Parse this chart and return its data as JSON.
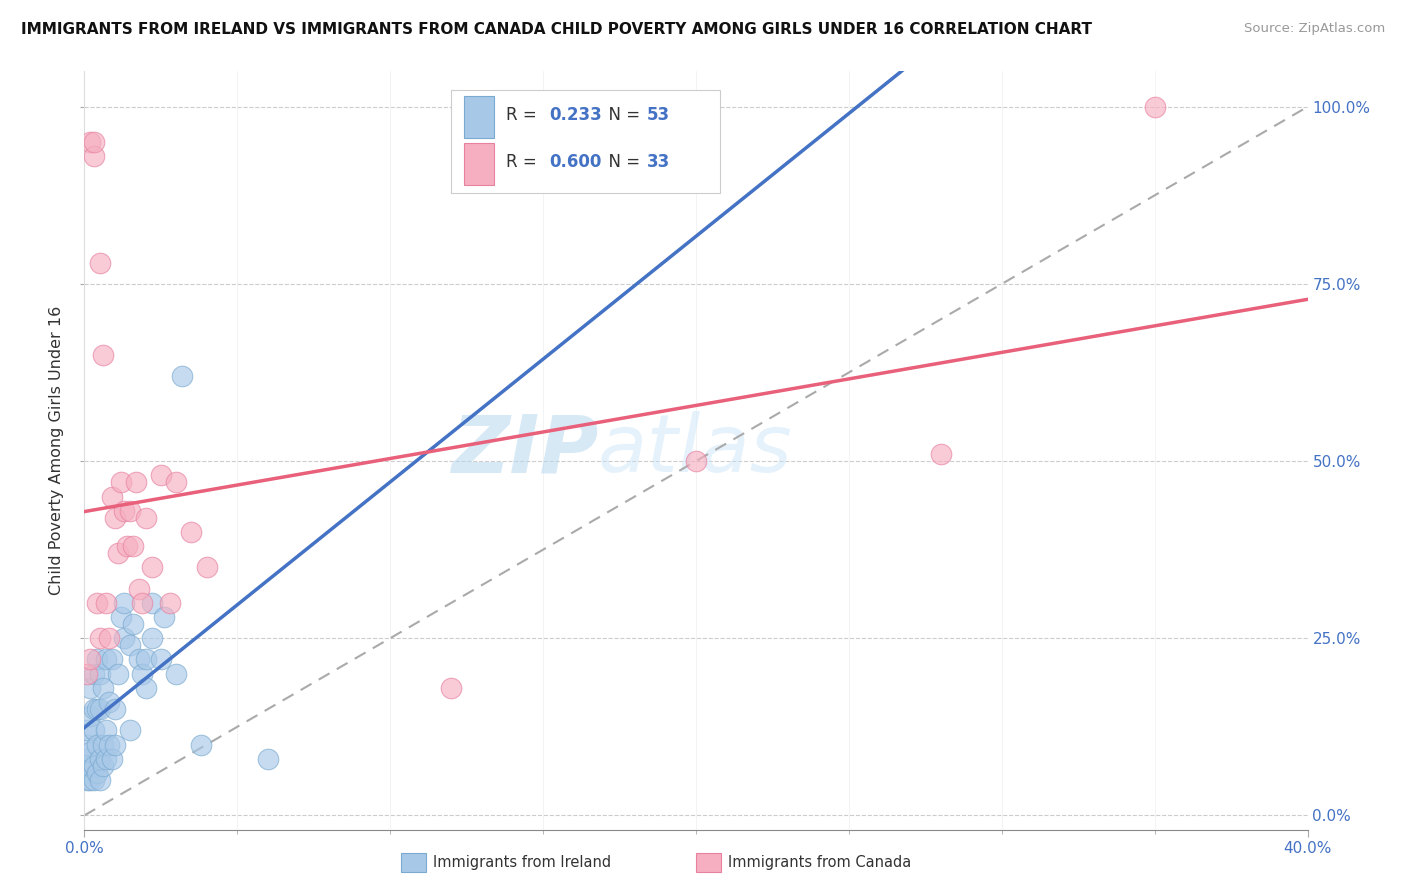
{
  "title": "IMMIGRANTS FROM IRELAND VS IMMIGRANTS FROM CANADA CHILD POVERTY AMONG GIRLS UNDER 16 CORRELATION CHART",
  "source": "Source: ZipAtlas.com",
  "ylabel": "Child Poverty Among Girls Under 16",
  "ireland_R": 0.233,
  "ireland_N": 53,
  "canada_R": 0.6,
  "canada_N": 33,
  "ireland_color": "#a8c8e8",
  "canada_color": "#f5afc0",
  "ireland_line_color": "#4472c4",
  "canada_line_color": "#e8607a",
  "ireland_edge_color": "#7aaad0",
  "canada_edge_color": "#e880a0",
  "xmin": 0.0,
  "xmax": 0.4,
  "ymin": -0.02,
  "ymax": 1.05,
  "watermark_zip": "ZIP",
  "watermark_atlas": "atlas",
  "legend_ireland_label": "Immigrants from Ireland",
  "legend_canada_label": "Immigrants from Canada",
  "ireland_x": [
    0.001,
    0.001,
    0.001,
    0.001,
    0.002,
    0.002,
    0.002,
    0.002,
    0.002,
    0.003,
    0.003,
    0.003,
    0.003,
    0.003,
    0.004,
    0.004,
    0.004,
    0.004,
    0.005,
    0.005,
    0.005,
    0.005,
    0.006,
    0.006,
    0.006,
    0.007,
    0.007,
    0.007,
    0.008,
    0.008,
    0.009,
    0.009,
    0.01,
    0.01,
    0.011,
    0.012,
    0.013,
    0.013,
    0.015,
    0.015,
    0.016,
    0.018,
    0.019,
    0.02,
    0.02,
    0.022,
    0.022,
    0.025,
    0.026,
    0.03,
    0.032,
    0.038,
    0.06
  ],
  "ireland_y": [
    0.05,
    0.08,
    0.1,
    0.12,
    0.05,
    0.07,
    0.09,
    0.14,
    0.18,
    0.05,
    0.07,
    0.12,
    0.15,
    0.2,
    0.06,
    0.1,
    0.15,
    0.22,
    0.05,
    0.08,
    0.15,
    0.2,
    0.07,
    0.1,
    0.18,
    0.08,
    0.12,
    0.22,
    0.1,
    0.16,
    0.08,
    0.22,
    0.1,
    0.15,
    0.2,
    0.28,
    0.25,
    0.3,
    0.12,
    0.24,
    0.27,
    0.22,
    0.2,
    0.18,
    0.22,
    0.25,
    0.3,
    0.22,
    0.28,
    0.2,
    0.62,
    0.1,
    0.08
  ],
  "canada_x": [
    0.001,
    0.002,
    0.002,
    0.003,
    0.003,
    0.004,
    0.005,
    0.005,
    0.006,
    0.007,
    0.008,
    0.009,
    0.01,
    0.011,
    0.012,
    0.013,
    0.014,
    0.015,
    0.016,
    0.017,
    0.018,
    0.019,
    0.02,
    0.022,
    0.025,
    0.028,
    0.03,
    0.035,
    0.04,
    0.12,
    0.2,
    0.28,
    0.35
  ],
  "canada_y": [
    0.2,
    0.22,
    0.95,
    0.93,
    0.95,
    0.3,
    0.25,
    0.78,
    0.65,
    0.3,
    0.25,
    0.45,
    0.42,
    0.37,
    0.47,
    0.43,
    0.38,
    0.43,
    0.38,
    0.47,
    0.32,
    0.3,
    0.42,
    0.35,
    0.48,
    0.3,
    0.47,
    0.4,
    0.35,
    0.18,
    0.5,
    0.51,
    1.0
  ]
}
